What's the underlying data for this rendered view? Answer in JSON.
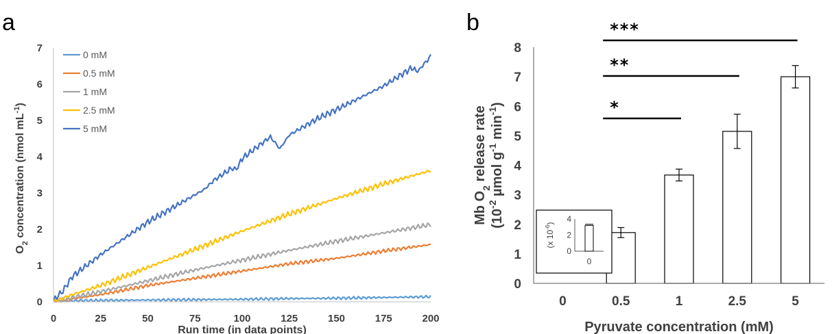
{
  "panel_a_letter": "a",
  "panel_b_letter": "b",
  "chart_data": [
    {
      "type": "line",
      "xlabel": "Run time (in data points)",
      "ylabel": "O2 concentration (nmol mL-1)",
      "xlim": [
        0,
        200
      ],
      "ylim": [
        0,
        7
      ],
      "x_ticks": [
        "0",
        "25",
        "50",
        "75",
        "100",
        "125",
        "150",
        "175",
        "200"
      ],
      "y_ticks": [
        "0",
        "1",
        "2",
        "3",
        "4",
        "5",
        "6",
        "7"
      ],
      "grid": false,
      "legend_position": "top-left",
      "series": [
        {
          "name": "0 mM",
          "color": "#5B9BD5",
          "x": [
            0,
            10,
            25,
            50,
            75,
            100,
            125,
            150,
            175,
            200
          ],
          "y": [
            0.02,
            0.03,
            0.04,
            0.05,
            0.06,
            0.07,
            0.09,
            0.1,
            0.12,
            0.14
          ]
        },
        {
          "name": "0.5 mM",
          "color": "#ED7D31",
          "x": [
            0,
            10,
            25,
            50,
            75,
            100,
            125,
            150,
            175,
            200
          ],
          "y": [
            0,
            0.08,
            0.2,
            0.45,
            0.65,
            0.85,
            1.05,
            1.2,
            1.4,
            1.58
          ]
        },
        {
          "name": "1 mM",
          "color": "#A5A5A5",
          "x": [
            0,
            10,
            25,
            50,
            75,
            100,
            125,
            150,
            175,
            200
          ],
          "y": [
            0,
            0.12,
            0.28,
            0.58,
            0.88,
            1.15,
            1.42,
            1.67,
            1.9,
            2.13
          ]
        },
        {
          "name": "2.5 mM",
          "color": "#FFC000",
          "x": [
            0,
            10,
            25,
            50,
            75,
            100,
            125,
            150,
            175,
            200
          ],
          "y": [
            0,
            0.2,
            0.45,
            0.95,
            1.45,
            1.95,
            2.42,
            2.85,
            3.25,
            3.62
          ]
        },
        {
          "name": "5 mM",
          "color": "#4472C4",
          "x": [
            0,
            5,
            10,
            25,
            50,
            75,
            80,
            85,
            95,
            97,
            100,
            115,
            120,
            125,
            140,
            150,
            175,
            190,
            193,
            200
          ],
          "y": [
            0.05,
            0.3,
            0.7,
            1.3,
            2.2,
            2.95,
            3.1,
            3.35,
            3.7,
            3.65,
            3.95,
            4.55,
            4.22,
            4.6,
            5.05,
            5.3,
            5.95,
            6.45,
            6.35,
            6.77
          ]
        }
      ]
    },
    {
      "type": "bar",
      "xlabel": "Pyruvate concentration (mM)",
      "ylabel_line1": "Mb O2 release rate",
      "ylabel_line2": "(10-2 µmol g-1 min-1)",
      "categories": [
        "0",
        "0.5",
        "1",
        "2.5",
        "5"
      ],
      "values": [
        0,
        1.72,
        3.67,
        5.15,
        7.0
      ],
      "errors": [
        0,
        0.17,
        0.2,
        0.58,
        0.38
      ],
      "ylim": [
        0,
        8
      ],
      "y_ticks": [
        "0",
        "1",
        "2",
        "3",
        "4",
        "5",
        "6",
        "7",
        "8"
      ],
      "grid": false,
      "significance": [
        {
          "label": "*",
          "from": "0.5",
          "to": "1"
        },
        {
          "label": "**",
          "from": "0.5",
          "to": "2.5"
        },
        {
          "label": "***",
          "from": "0.5",
          "to": "5"
        }
      ],
      "inset": {
        "ylabel": "(x 10-6)",
        "category": "0",
        "value": 3.2,
        "error": 0.15,
        "ylim": [
          0,
          4
        ],
        "y_ticks": [
          "0",
          "2",
          "4"
        ]
      }
    }
  ]
}
